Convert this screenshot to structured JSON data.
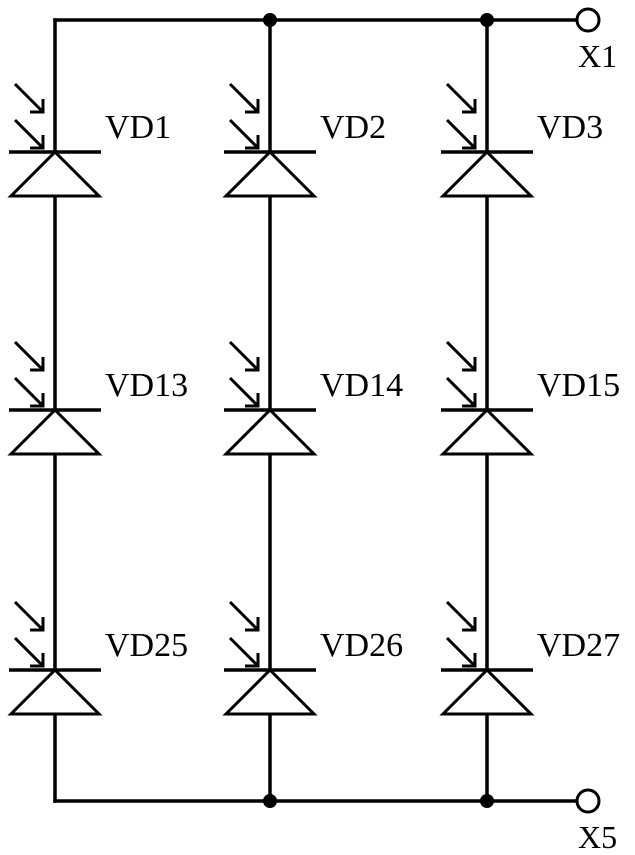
{
  "terminals": {
    "top": "X1",
    "bottom": "X5"
  },
  "diodes": [
    [
      "VD1",
      "VD2",
      "VD3"
    ],
    [
      "VD13",
      "VD14",
      "VD15"
    ],
    [
      "VD25",
      "VD26",
      "VD27"
    ]
  ],
  "component_type": "photodiode",
  "colors": {
    "stroke": "#000000",
    "background": "#ffffff"
  }
}
